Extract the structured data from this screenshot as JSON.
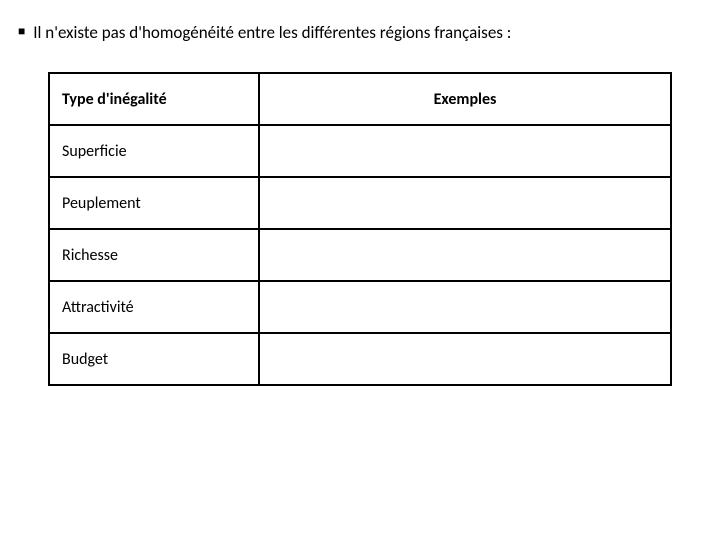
{
  "bullet": {
    "marker": "■",
    "text": "Il n'existe pas d'homogénéité entre les différentes régions françaises :"
  },
  "table": {
    "headers": {
      "col1": "Type d'inégalité",
      "col2": "Exemples"
    },
    "rows": [
      {
        "label": "Superficie",
        "example": ""
      },
      {
        "label": "Peuplement",
        "example": ""
      },
      {
        "label": "Richesse",
        "example": ""
      },
      {
        "label": "Attractivité",
        "example": ""
      },
      {
        "label": "Budget",
        "example": ""
      }
    ]
  },
  "colors": {
    "background": "#ffffff",
    "text": "#000000",
    "border": "#000000"
  }
}
